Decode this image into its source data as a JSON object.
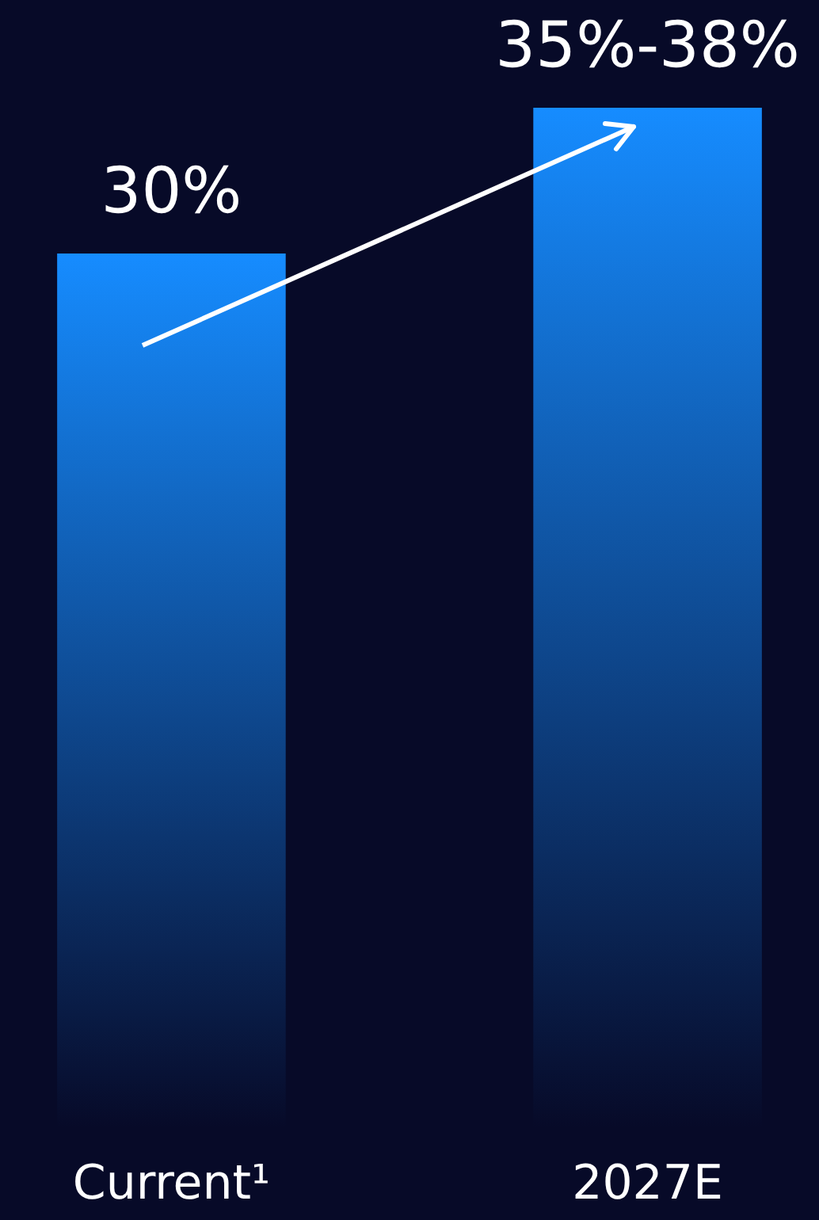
{
  "chart_data": {
    "type": "bar",
    "categories": [
      "Current¹",
      "2027E"
    ],
    "values": [
      30,
      35
    ],
    "value_labels": [
      "30%",
      "35%-38%"
    ],
    "color": "#168cff",
    "tick_labels": "x"
  }
}
